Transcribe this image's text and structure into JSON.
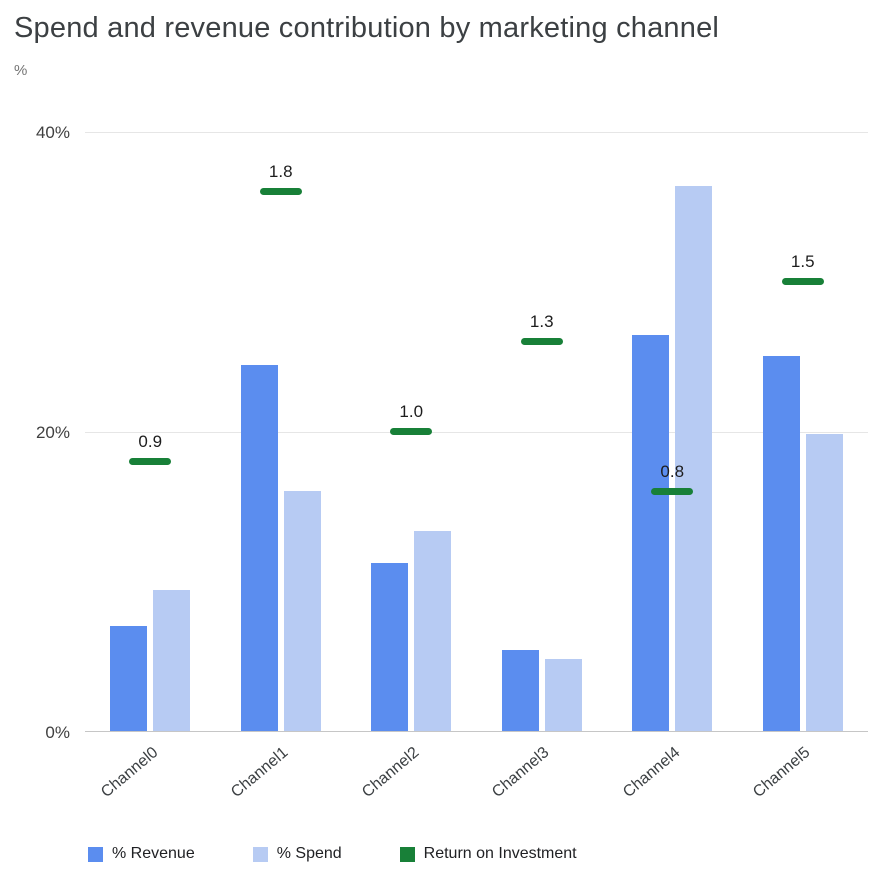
{
  "title": "Spend and revenue contribution by marketing channel",
  "y_axis_unit": "%",
  "chart_data": {
    "type": "bar",
    "categories": [
      "Channel0",
      "Channel1",
      "Channel2",
      "Channel3",
      "Channel4",
      "Channel5"
    ],
    "series": [
      {
        "name": "% Revenue",
        "color": "#5b8def",
        "values": [
          7.1,
          24.5,
          11.3,
          5.5,
          26.5,
          25.1
        ]
      },
      {
        "name": "% Spend",
        "color": "#b7cbf3",
        "values": [
          9.5,
          16.1,
          13.4,
          4.9,
          36.4,
          19.9
        ]
      }
    ],
    "roi": {
      "name": "Return on Investment",
      "color": "#188038",
      "values": [
        0.9,
        1.8,
        1.0,
        1.3,
        0.8,
        1.5
      ],
      "labels": [
        "0.9",
        "1.8",
        "1.0",
        "1.3",
        "0.8",
        "1.5"
      ],
      "axis_scale_percent_per_unit": 20
    },
    "ylim": [
      0,
      40
    ],
    "yticks": [
      "0%",
      "20%",
      "40%"
    ],
    "grid": true,
    "legend_position": "bottom"
  }
}
